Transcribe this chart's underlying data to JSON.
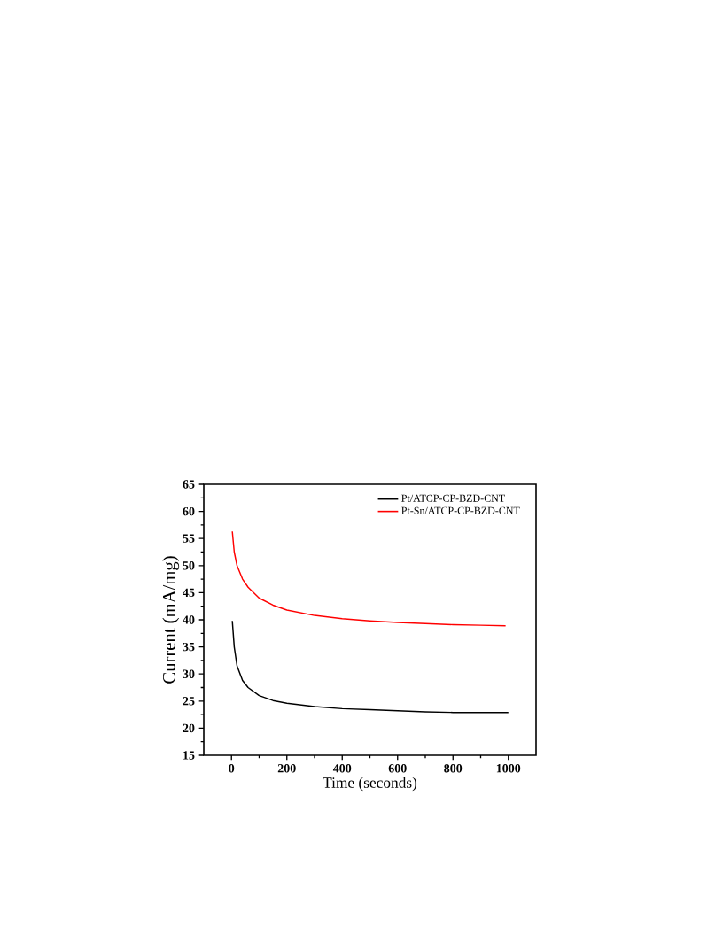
{
  "chart_data": {
    "type": "line",
    "xlabel": "Time (seconds)",
    "ylabel": "Current (mA/mg)",
    "xlim": [
      -100,
      1100
    ],
    "ylim": [
      15,
      65
    ],
    "xticks": [
      0,
      200,
      400,
      600,
      800,
      1000
    ],
    "yticks": [
      15,
      20,
      25,
      30,
      35,
      40,
      45,
      50,
      55,
      60,
      65
    ],
    "legend": "top right",
    "grid": false,
    "marker": "none",
    "line_style": "solid",
    "series": [
      {
        "name": "Pt/ATCP-CP-BZD-CNT",
        "color": "#000000",
        "x": [
          3,
          10,
          20,
          40,
          60,
          100,
          150,
          200,
          300,
          400,
          500,
          600,
          700,
          800,
          900,
          1000
        ],
        "values": [
          39.8,
          35,
          31.5,
          28.8,
          27.5,
          26,
          25.1,
          24.6,
          24,
          23.6,
          23.4,
          23.2,
          23.0,
          22.9,
          22.9,
          22.9
        ]
      },
      {
        "name": "Pt-Sn/ATCP-CP-BZD-CNT",
        "color": "#ff0000",
        "x": [
          3,
          10,
          20,
          40,
          60,
          100,
          150,
          200,
          300,
          400,
          500,
          600,
          700,
          800,
          900,
          990
        ],
        "values": [
          56.3,
          52.5,
          50,
          47.5,
          46,
          44,
          42.7,
          41.8,
          40.8,
          40.2,
          39.8,
          39.5,
          39.3,
          39.1,
          39.0,
          38.9
        ]
      }
    ]
  }
}
